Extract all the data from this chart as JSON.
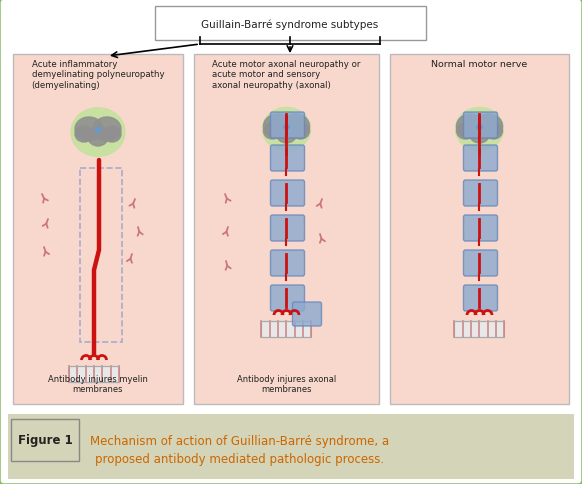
{
  "title_box_text": "Guillain-Barré syndrome subtypes",
  "panel1_title": "Acute inflammatory\ndemyelinating polyneuropathy\n(demyelinating)",
  "panel2_title": "Acute motor axonal neuropathy or\nacute motor and sensory\naxonal neuropathy (axonal)",
  "panel3_title": "Normal motor nerve",
  "panel1_caption": "Antibody injures myelin\nmembranes",
  "panel2_caption": "Antibody injures axonal\nmembranes",
  "figure_label": "Figure 1",
  "figure_caption": "Mechanism of action of Guillian-Barré syndrome, a\nproposed antibody mediated pathologic process.",
  "bg_outer": "#ffffff",
  "bg_panel": "#f8d8cc",
  "bg_caption_bar": "#d4d4b8",
  "border_outer": "#88bb66",
  "brain_outer": "#c8e0a0",
  "brain_inner": "#909090",
  "nerve_red": "#cc1111",
  "myelin_blue": "#8eaacf",
  "text_dark": "#222222",
  "text_orange": "#cc6600",
  "antibody_color": "#cc7777",
  "dashed_myelin": "#aaaacc"
}
